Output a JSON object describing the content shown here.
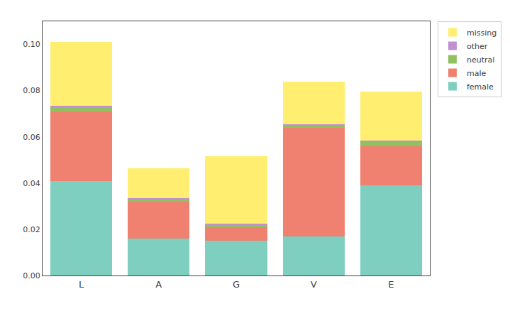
{
  "chart_data": {
    "type": "bar",
    "stacked": true,
    "categories": [
      "L",
      "A",
      "G",
      "V",
      "E"
    ],
    "series": [
      {
        "name": "female",
        "color": "#7ECFC0",
        "values": [
          0.041,
          0.016,
          0.015,
          0.017,
          0.039
        ]
      },
      {
        "name": "male",
        "color": "#F08070",
        "values": [
          0.03,
          0.016,
          0.006,
          0.047,
          0.017
        ]
      },
      {
        "name": "neutral",
        "color": "#90C060",
        "values": [
          0.002,
          0.001,
          0.001,
          0.001,
          0.002
        ]
      },
      {
        "name": "other",
        "color": "#C090D0",
        "values": [
          0.0005,
          0.0005,
          0.0005,
          0.0005,
          0.0005
        ]
      },
      {
        "name": "missing",
        "color": "#FFEE70",
        "values": [
          0.0275,
          0.013,
          0.029,
          0.0185,
          0.021
        ]
      }
    ],
    "ylim": [
      0,
      0.11
    ],
    "yticks": [
      {
        "value": 0,
        "label": "0.00"
      },
      0.02,
      0.04,
      0.06,
      0.08,
      {
        "value": 0.1,
        "label": "0.10"
      }
    ],
    "grid": false,
    "legend": "upper right"
  }
}
